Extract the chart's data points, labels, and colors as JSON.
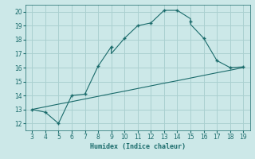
{
  "xlabel": "Humidex (Indice chaleur)",
  "ylabel": "",
  "xlim": [
    2.5,
    19.5
  ],
  "ylim": [
    11.5,
    20.5
  ],
  "xticks": [
    3,
    4,
    5,
    6,
    7,
    8,
    9,
    10,
    11,
    12,
    13,
    14,
    15,
    16,
    17,
    18,
    19
  ],
  "yticks": [
    12,
    13,
    14,
    15,
    16,
    17,
    18,
    19,
    20
  ],
  "bg_color": "#cce8e8",
  "grid_color": "#aad0d0",
  "line_color": "#1a6b6b",
  "main_x": [
    3,
    4,
    5,
    6,
    7,
    8,
    9,
    9,
    10,
    11,
    12,
    13,
    14,
    15,
    15,
    16,
    17,
    18,
    19
  ],
  "main_y": [
    13.0,
    12.8,
    12.0,
    14.0,
    14.1,
    16.1,
    17.5,
    17.0,
    18.1,
    19.0,
    19.2,
    20.1,
    20.1,
    19.5,
    19.1,
    18.1,
    16.5,
    16.0,
    16.05
  ],
  "marker_x": [
    3,
    4,
    5,
    6,
    7,
    8,
    9,
    10,
    11,
    12,
    13,
    14,
    15,
    16,
    17,
    18,
    19
  ],
  "marker_y": [
    13.0,
    12.8,
    12.0,
    14.0,
    14.1,
    16.1,
    17.5,
    18.1,
    19.0,
    19.2,
    20.1,
    20.1,
    19.3,
    18.1,
    16.5,
    16.0,
    16.05
  ],
  "trend_x": [
    3,
    4,
    5,
    6,
    7,
    8,
    9,
    10,
    11,
    12,
    13,
    14,
    15,
    16,
    17,
    18,
    19
  ],
  "trend_y": [
    13.0,
    13.19,
    13.38,
    13.56,
    13.75,
    13.94,
    14.13,
    14.31,
    14.5,
    14.69,
    14.88,
    15.06,
    15.25,
    15.44,
    15.63,
    15.81,
    16.0
  ]
}
